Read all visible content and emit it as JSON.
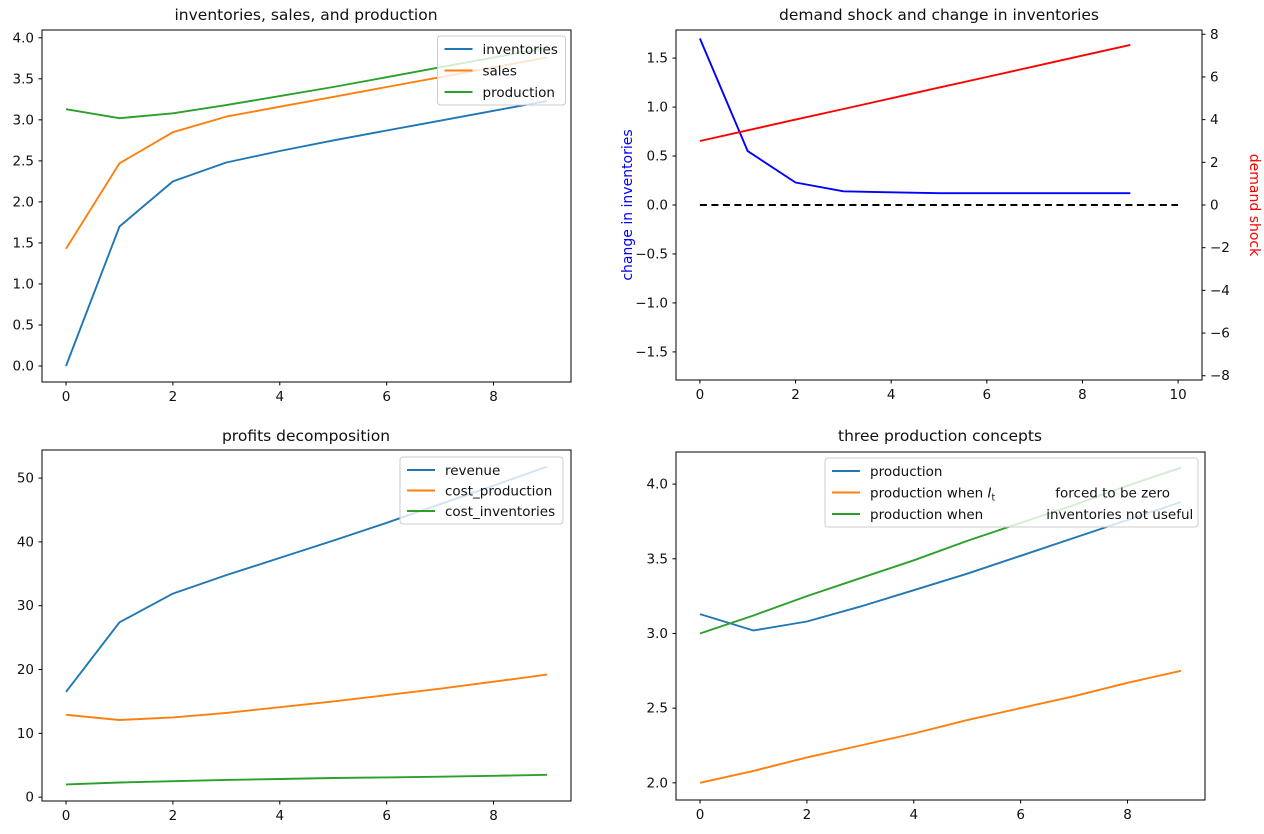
{
  "figure": {
    "background": "#ffffff"
  },
  "colors": {
    "tab_blue": "#1f77b4",
    "tab_orange": "#ff7f0e",
    "tab_green": "#2ca02c",
    "pure_blue": "#0000ff",
    "pure_red": "#ff0000",
    "black": "#000000",
    "legend_edge": "#cccccc"
  },
  "chart_data": [
    {
      "type": "line",
      "title": "inventories, sales, and production",
      "x": [
        0,
        1,
        2,
        3,
        4,
        5,
        6,
        7,
        8,
        9
      ],
      "xlim": [
        -0.45,
        9.45
      ],
      "ylim": [
        -0.195,
        4.095
      ],
      "xticks": [
        0,
        2,
        4,
        6,
        8
      ],
      "xtick_decimals": 0,
      "yticks": [
        0.0,
        0.5,
        1.0,
        1.5,
        2.0,
        2.5,
        3.0,
        3.5,
        4.0
      ],
      "ytick_decimals": 1,
      "grid": false,
      "legend_position": "upper right",
      "series": [
        {
          "name": "inventories",
          "color": "#1f77b4",
          "values": [
            0.0,
            1.7,
            2.25,
            2.48,
            2.62,
            2.75,
            2.87,
            2.99,
            3.11,
            3.23
          ]
        },
        {
          "name": "sales",
          "color": "#ff7f0e",
          "values": [
            1.43,
            2.47,
            2.85,
            3.04,
            3.16,
            3.28,
            3.4,
            3.52,
            3.64,
            3.76
          ]
        },
        {
          "name": "production",
          "color": "#2ca02c",
          "values": [
            3.13,
            3.02,
            3.08,
            3.18,
            3.29,
            3.4,
            3.52,
            3.64,
            3.76,
            3.88
          ]
        }
      ]
    },
    {
      "type": "line",
      "title": "demand shock and change in inventories",
      "x": [
        0,
        1,
        2,
        3,
        4,
        5,
        6,
        7,
        8,
        9
      ],
      "xlim": [
        -0.5,
        10.5
      ],
      "ylim_left": [
        -1.787,
        1.787
      ],
      "ylim_right": [
        -8.2,
        8.2
      ],
      "xticks": [
        0,
        2,
        4,
        6,
        8,
        10
      ],
      "xtick_decimals": 0,
      "yticks_left": [
        -1.5,
        -1.0,
        -0.5,
        0.0,
        0.5,
        1.0,
        1.5
      ],
      "ytick_left_decimals": 1,
      "yticks_right": [
        -8,
        -6,
        -4,
        -2,
        0,
        2,
        4,
        6,
        8
      ],
      "ytick_right_decimals": 0,
      "ylabel_left": {
        "text": "change in inventories",
        "color": "#0000ff"
      },
      "ylabel_right": {
        "text": "demand shock",
        "color": "#ff0000"
      },
      "grid": false,
      "legend_position": null,
      "series": [
        {
          "name": "change in inventories",
          "axis": "left",
          "color": "#0000ff",
          "values": [
            1.7,
            0.55,
            0.23,
            0.14,
            0.13,
            0.12,
            0.12,
            0.12,
            0.12,
            0.12
          ]
        },
        {
          "name": "demand shock",
          "axis": "right",
          "color": "#ff0000",
          "values": [
            3.0,
            3.5,
            4.0,
            4.5,
            5.0,
            5.5,
            6.0,
            6.5,
            7.0,
            7.5
          ]
        },
        {
          "name": "zero line",
          "axis": "left",
          "color": "#000000",
          "dashed": true,
          "x": [
            0,
            10
          ],
          "values": [
            0,
            0
          ]
        }
      ]
    },
    {
      "type": "line",
      "title": "profits decomposition",
      "x": [
        0,
        1,
        2,
        3,
        4,
        5,
        6,
        7,
        8,
        9
      ],
      "xlim": [
        -0.45,
        9.45
      ],
      "ylim": [
        -0.6,
        54.4
      ],
      "xticks": [
        0,
        2,
        4,
        6,
        8
      ],
      "xtick_decimals": 0,
      "yticks": [
        0,
        10,
        20,
        30,
        40,
        50
      ],
      "ytick_decimals": 0,
      "grid": false,
      "legend_position": "upper right",
      "series": [
        {
          "name": "revenue",
          "color": "#1f77b4",
          "values": [
            16.5,
            27.4,
            31.9,
            34.8,
            37.5,
            40.2,
            43.0,
            45.9,
            48.8,
            51.8
          ]
        },
        {
          "name": "cost_production",
          "color": "#ff7f0e",
          "values": [
            12.9,
            12.1,
            12.5,
            13.2,
            14.1,
            15.0,
            16.0,
            17.0,
            18.1,
            19.2
          ]
        },
        {
          "name": "cost_inventories",
          "color": "#2ca02c",
          "values": [
            2.0,
            2.3,
            2.5,
            2.7,
            2.85,
            3.0,
            3.1,
            3.2,
            3.35,
            3.5
          ]
        }
      ]
    },
    {
      "type": "line",
      "title": "three production concepts",
      "x": [
        0,
        1,
        2,
        3,
        4,
        5,
        6,
        7,
        8,
        9
      ],
      "xlim": [
        -0.45,
        9.45
      ],
      "ylim": [
        1.885,
        4.215
      ],
      "xticks": [
        0,
        2,
        4,
        6,
        8
      ],
      "xtick_decimals": 0,
      "yticks": [
        2.0,
        2.5,
        3.0,
        3.5,
        4.0
      ],
      "ytick_decimals": 1,
      "grid": false,
      "legend_position": "upper right wide",
      "series": [
        {
          "name": "production",
          "color": "#1f77b4",
          "values": [
            3.13,
            3.02,
            3.08,
            3.18,
            3.29,
            3.4,
            3.52,
            3.64,
            3.76,
            3.88
          ]
        },
        {
          "name": "production when I_t forced to be zero",
          "color": "#ff7f0e",
          "label_parts": [
            {
              "text": "production when  "
            },
            {
              "math": "I",
              "sub": "t"
            },
            {
              "gap": 60
            },
            {
              "text": "forced to be zero"
            }
          ],
          "values": [
            2.0,
            2.08,
            2.17,
            2.25,
            2.33,
            2.42,
            2.5,
            2.58,
            2.67,
            2.75
          ]
        },
        {
          "name": "production when inventories not useful",
          "color": "#2ca02c",
          "label_parts": [
            {
              "text": "production when"
            },
            {
              "gap": 63
            },
            {
              "text": "inventories not useful"
            }
          ],
          "values": [
            3.0,
            3.12,
            3.25,
            3.37,
            3.49,
            3.62,
            3.74,
            3.86,
            3.99,
            4.11
          ]
        }
      ]
    }
  ]
}
